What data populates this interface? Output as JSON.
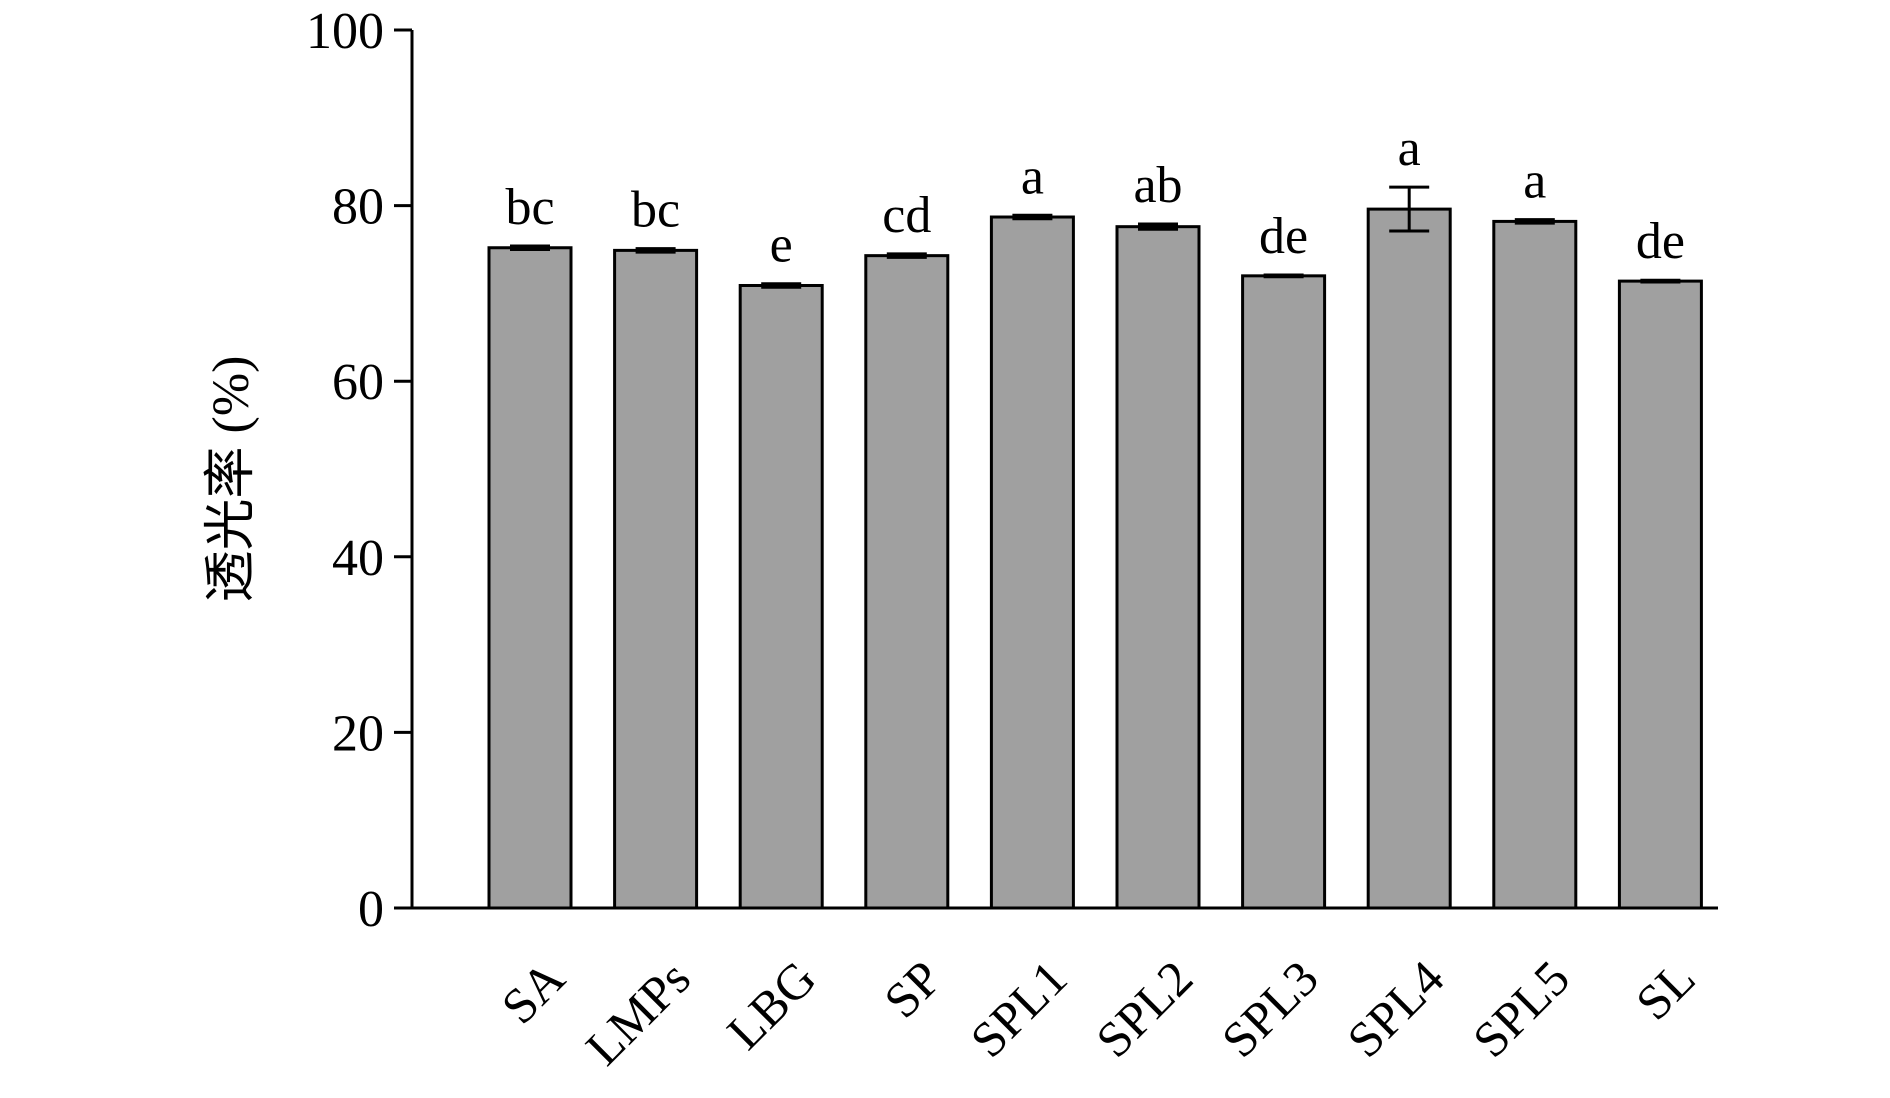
{
  "chart_data": {
    "type": "bar",
    "title": "",
    "xlabel": "",
    "ylabel": "透光率 (%)",
    "ylim": [
      0,
      100
    ],
    "yticks": [
      0,
      20,
      40,
      60,
      80,
      100
    ],
    "grid": false,
    "legend": "none",
    "categories": [
      "SA",
      "LMPs",
      "LBG",
      "SP",
      "SPL1",
      "SPL2",
      "SPL3",
      "SPL4",
      "SPL5",
      "SL"
    ],
    "values": [
      75.2,
      74.9,
      70.9,
      74.3,
      78.7,
      77.6,
      72.0,
      79.6,
      78.2,
      71.4
    ],
    "errors": [
      0.2,
      0.2,
      0.2,
      0.2,
      0.2,
      0.3,
      0.1,
      2.5,
      0.2,
      0.1
    ],
    "significance": [
      "bc",
      "bc",
      "e",
      "cd",
      "a",
      "ab",
      "de",
      "a",
      "a",
      "de"
    ],
    "bar_color": "#a0a0a0",
    "edge_color": "#000000"
  }
}
